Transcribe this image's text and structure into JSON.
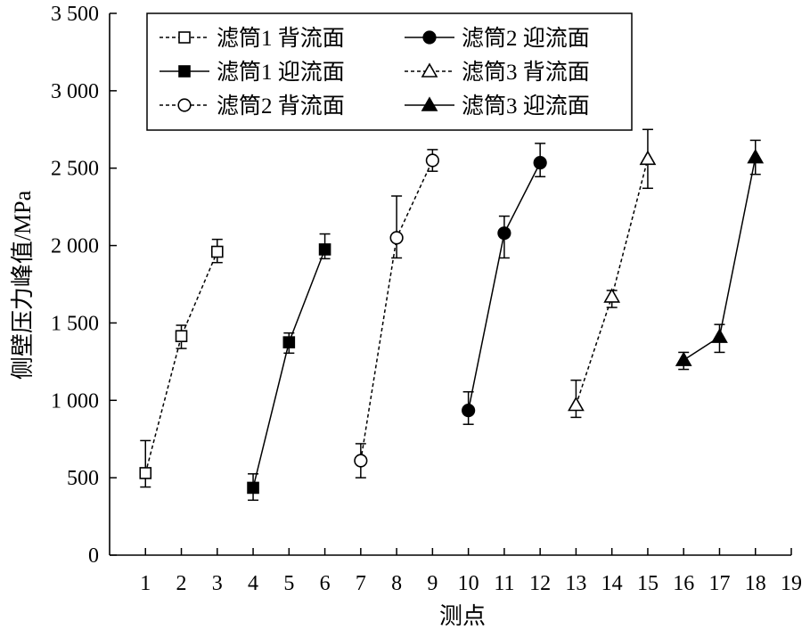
{
  "chart_data": {
    "type": "scatter",
    "xlabel": "测点",
    "ylabel": "侧壁压力峰值/MPa",
    "xlim": [
      0,
      19
    ],
    "ylim": [
      0,
      3500
    ],
    "xticks": [
      1,
      2,
      3,
      4,
      5,
      6,
      7,
      8,
      9,
      10,
      11,
      12,
      13,
      14,
      15,
      16,
      17,
      18,
      19
    ],
    "xtick_labels": [
      "1",
      "2",
      "3",
      "4",
      "5",
      "6",
      "7",
      "8",
      "9",
      "10",
      "11",
      "12",
      "13",
      "14",
      "15",
      "16",
      "17",
      "18",
      "19"
    ],
    "yticks": [
      0,
      500,
      1000,
      1500,
      2000,
      2500,
      3000,
      3500
    ],
    "ytick_labels": [
      "0",
      "500",
      "1 000",
      "1 500",
      "2 000",
      "2 500",
      "3 000",
      "3 500"
    ],
    "grid": false,
    "legend_position": "top-left",
    "series": [
      {
        "name": "滤筒1 背流面",
        "marker": "square-open",
        "line": "dashed",
        "x": [
          1,
          2,
          3
        ],
        "y": [
          530,
          1415,
          1960
        ],
        "err": [
          [
            90,
            210
          ],
          [
            80,
            70
          ],
          [
            70,
            80
          ]
        ]
      },
      {
        "name": "滤筒1 迎流面",
        "marker": "square-filled",
        "line": "solid",
        "x": [
          4,
          5,
          6
        ],
        "y": [
          435,
          1375,
          1975
        ],
        "err": [
          [
            80,
            90
          ],
          [
            70,
            60
          ],
          [
            60,
            100
          ]
        ]
      },
      {
        "name": "滤筒2 背流面",
        "marker": "circle-open",
        "line": "dashed",
        "x": [
          7,
          8,
          9
        ],
        "y": [
          610,
          2050,
          2550
        ],
        "err": [
          [
            110,
            110
          ],
          [
            130,
            270
          ],
          [
            70,
            70
          ]
        ]
      },
      {
        "name": "滤筒2 迎流面",
        "marker": "circle-filled",
        "line": "solid",
        "x": [
          10,
          11,
          12
        ],
        "y": [
          935,
          2080,
          2535
        ],
        "err": [
          [
            90,
            120
          ],
          [
            160,
            110
          ],
          [
            90,
            125
          ]
        ]
      },
      {
        "name": "滤筒3 背流面",
        "marker": "triangle-open",
        "line": "dashed",
        "x": [
          13,
          14,
          15
        ],
        "y": [
          970,
          1670,
          2560
        ],
        "err": [
          [
            80,
            160
          ],
          [
            70,
            40
          ],
          [
            190,
            190
          ]
        ]
      },
      {
        "name": "滤筒3 迎流面",
        "marker": "triangle-filled",
        "line": "solid",
        "x": [
          16,
          17,
          18
        ],
        "y": [
          1260,
          1410,
          2570
        ],
        "err": [
          [
            60,
            50
          ],
          [
            100,
            80
          ],
          [
            110,
            110
          ]
        ]
      }
    ]
  }
}
